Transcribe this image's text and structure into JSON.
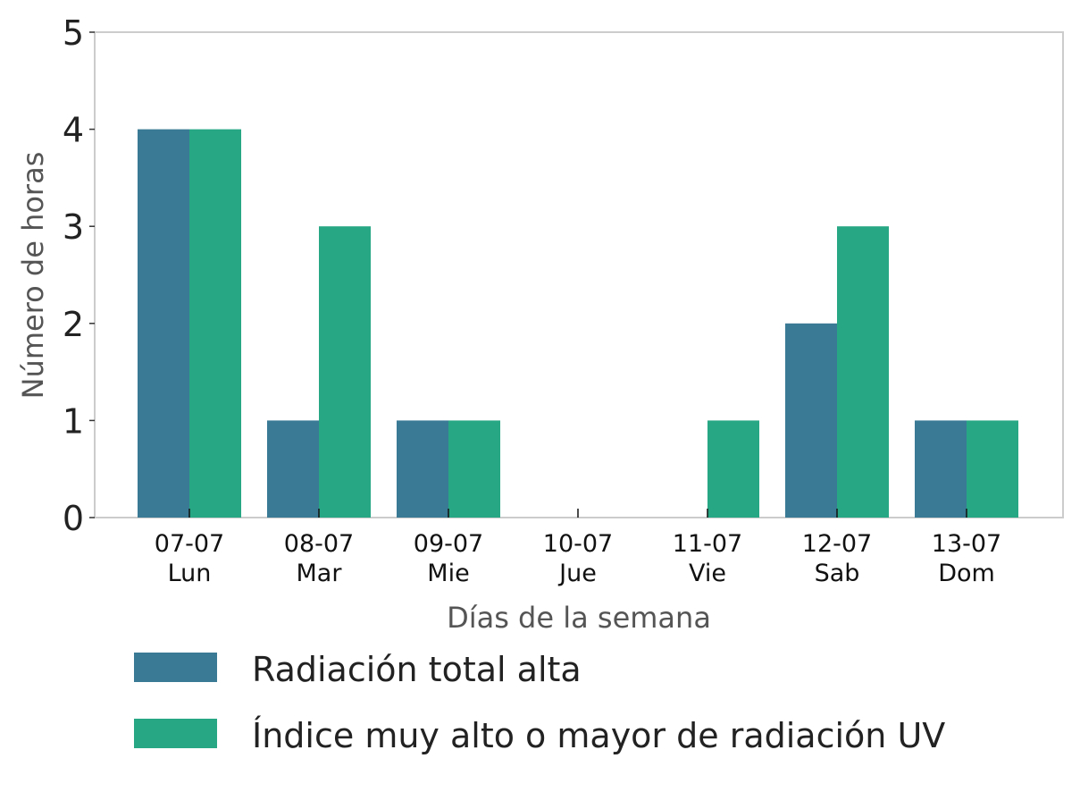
{
  "chart_data": {
    "type": "bar",
    "categories": [
      "07-07\nLun",
      "08-07\nMar",
      "09-07\nMie",
      "10-07\nJue",
      "11-07\nVie",
      "12-07\nSab",
      "13-07\nDom"
    ],
    "series": [
      {
        "name": "Radiación total alta",
        "color": "#3a7a94",
        "values": [
          4,
          1,
          1,
          0,
          0,
          2,
          1
        ]
      },
      {
        "name": "Índice muy alto o mayor de radiación UV",
        "color": "#28a784",
        "values": [
          4,
          3,
          1,
          0,
          1,
          3,
          1
        ]
      }
    ],
    "xlabel": "Días de la semana",
    "ylabel": "Número de horas",
    "ylim": [
      0,
      5
    ],
    "yticks": [
      0,
      1,
      2,
      3,
      4,
      5
    ],
    "grid": false,
    "legend_position": "bottom"
  }
}
